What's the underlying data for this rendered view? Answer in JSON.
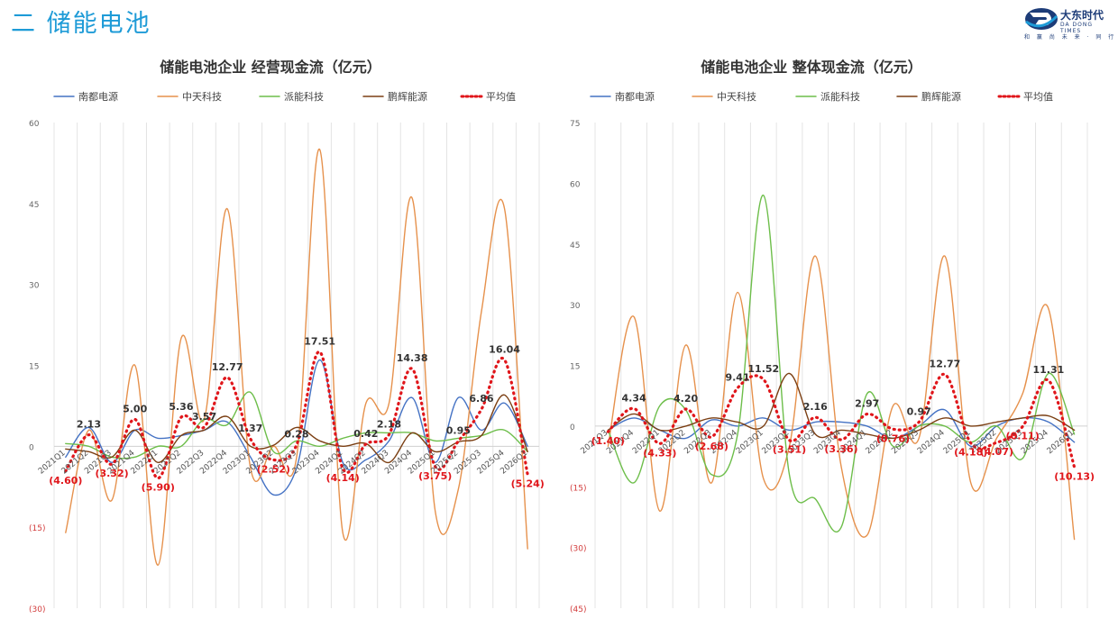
{
  "page": {
    "title": "二  储能电池"
  },
  "logo": {
    "name": "大东时代",
    "en": "DA DONG TIMES",
    "slogan": "和 赢 尚 未 来 · 同 行"
  },
  "colors": {
    "南都电源": "#4472c4",
    "中天科技": "#e6914c",
    "派能科技": "#6dbe4a",
    "鹏辉能源": "#7b3f13",
    "平均值": "#e0161b"
  },
  "chart_data": [
    {
      "type": "line",
      "title": "储能电池企业   经营现金流（亿元）",
      "legend_position": "top",
      "ylim": [
        -30,
        60
      ],
      "yticks": [
        60,
        45,
        30,
        15,
        0,
        -15,
        -30
      ],
      "ytick_labels": [
        "60",
        "45",
        "30",
        "15",
        "0",
        "(15)",
        "(30)"
      ],
      "x": [
        "2021Q1",
        "2021Q2",
        "2021Q3",
        "2021Q4",
        "2022Q1",
        "2022Q2",
        "2022Q3",
        "2022Q4",
        "2023Q1",
        "2023Q2",
        "2023Q3",
        "2023Q4",
        "2024Q1",
        "2024Q2",
        "2024Q3",
        "2024Q4",
        "2025Q1",
        "2025Q2",
        "2025Q3",
        "2025Q4",
        "2026Q1"
      ],
      "xtick_labels": [
        "2021Q1",
        "2021Q2",
        "2021Q3",
        "2021Q4",
        "2022Q1",
        "2022Q2",
        "2022Q3",
        "2022Q4",
        "2023Q1",
        "2023Q2",
        "2023Q3",
        "2023Q4",
        "2024Q1",
        "2024Q2",
        "2024Q3",
        "2024Q4",
        "2025Q1",
        "2025Q2",
        "2025Q3",
        "2025Q4",
        "2026Q1"
      ],
      "series": [
        {
          "name": "南都电源",
          "values": [
            -2,
            3.5,
            -3,
            3,
            1.5,
            2,
            3,
            4.5,
            -2,
            -9,
            -4,
            16,
            -3,
            -2.5,
            1,
            9,
            -3,
            9,
            3,
            8,
            0
          ]
        },
        {
          "name": "中天科技",
          "values": [
            -16,
            3,
            -10,
            15,
            -22,
            20,
            5,
            44,
            -4,
            0,
            -2,
            55,
            -16,
            8,
            8,
            46,
            -12,
            -8,
            25,
            44,
            -19
          ]
        },
        {
          "name": "派能科技",
          "values": [
            0.5,
            0,
            -2,
            -2,
            0,
            0,
            5,
            4,
            10,
            -1,
            1,
            0,
            1.5,
            2.5,
            2.5,
            2.5,
            1,
            1.5,
            2,
            3,
            -1
          ]
        },
        {
          "name": "鹏辉能源",
          "values": [
            -0.5,
            -1,
            -2,
            3,
            -3,
            2,
            3,
            5.5,
            0,
            0.2,
            3.5,
            1,
            0,
            0.5,
            -3,
            2.5,
            -1,
            0.8,
            2,
            9.5,
            -1
          ]
        },
        {
          "name": "平均值",
          "values": [
            -4.6,
            2.13,
            -3.32,
            5.0,
            -5.9,
            5.36,
            3.57,
            12.77,
            1.37,
            -2.52,
            0.28,
            17.51,
            -4.14,
            0.42,
            2.18,
            14.38,
            -3.75,
            0.95,
            6.86,
            16.04,
            -5.24
          ]
        }
      ],
      "data_labels": [
        "(4.60)",
        "2.13",
        "(3.32)",
        "5.00",
        "(5.90)",
        "5.36",
        "3.57",
        "12.77",
        "1.37",
        "(2.52)",
        "0.28",
        "17.51",
        "(4.14)",
        "0.42",
        "2.18",
        "14.38",
        "(3.75)",
        "0.95",
        "6.86",
        "16.04",
        "(5.24)"
      ]
    },
    {
      "type": "line",
      "title": "储能电池企业   整体现金流（亿元）",
      "legend_position": "top",
      "ylim": [
        -45,
        75
      ],
      "yticks": [
        75,
        60,
        45,
        30,
        15,
        0,
        -15,
        -30,
        -45
      ],
      "ytick_labels": [
        "75",
        "60",
        "45",
        "30",
        "15",
        "0",
        "(15)",
        "(30)",
        "(45)"
      ],
      "x": [
        "2021Q3",
        "2021Q4",
        "2022Q1",
        "2022Q2",
        "2022Q3",
        "2022Q4",
        "2023Q1",
        "2023Q2",
        "2023Q3",
        "2023Q4",
        "2024Q1",
        "2024Q2",
        "2024Q3",
        "2024Q4",
        "2025Q1",
        "2025Q2",
        "2025Q3",
        "2025Q4",
        "2026Q1"
      ],
      "xtick_labels": [
        "2021Q3",
        "2021Q4",
        "2022Q1",
        "2022Q2",
        "2022Q3",
        "2022Q4",
        "2023Q1",
        "2023Q2",
        "2023Q3",
        "2023Q4",
        "2024Q1",
        "2024Q2",
        "2024Q3",
        "2024Q4",
        "2025Q1",
        "2025Q2",
        "2025Q3",
        "2025Q4",
        "2026Q1"
      ],
      "series": [
        {
          "name": "南都电源",
          "values": [
            -1,
            2,
            -1,
            -3,
            1.5,
            0,
            2,
            -1,
            1,
            1,
            0,
            -3,
            0,
            4,
            -5,
            0,
            2,
            1,
            -4
          ]
        },
        {
          "name": "中天科技",
          "values": [
            -5,
            27,
            -21,
            20,
            -14,
            33,
            -13,
            -5,
            42,
            -10,
            -27,
            5,
            -3,
            42,
            -14,
            -3,
            8,
            29,
            -28
          ]
        },
        {
          "name": "派能科技",
          "values": [
            -1,
            -14,
            5,
            4,
            -12,
            -2,
            57,
            -12,
            -18,
            -25,
            8,
            -5,
            0,
            0,
            -4,
            0,
            -8,
            13,
            -2
          ]
        },
        {
          "name": "鹏辉能源",
          "values": [
            -1,
            3,
            -1,
            0,
            2,
            1,
            0,
            13,
            -2,
            -1,
            -2,
            -3,
            -1,
            2,
            0,
            1,
            2,
            2.5,
            -1
          ]
        },
        {
          "name": "平均值",
          "values": [
            -1.4,
            4.34,
            -4.33,
            4.2,
            -2.68,
            9.41,
            11.52,
            -3.51,
            2.16,
            -3.36,
            2.97,
            -0.76,
            0.97,
            12.77,
            -4.18,
            -4.07,
            -0.11,
            11.31,
            -10.13
          ]
        }
      ],
      "data_labels": [
        "(1.40)",
        "4.34",
        "(4.33)",
        "4.20",
        "(2.68)",
        "9.41",
        "11.52",
        "(3.51)",
        "2.16",
        "(3.36)",
        "2.97",
        "(0.76)",
        "0.97",
        "12.77",
        "(4.18)",
        "(4.07)",
        "(0.11)",
        "11.31",
        "(10.13)"
      ]
    }
  ]
}
